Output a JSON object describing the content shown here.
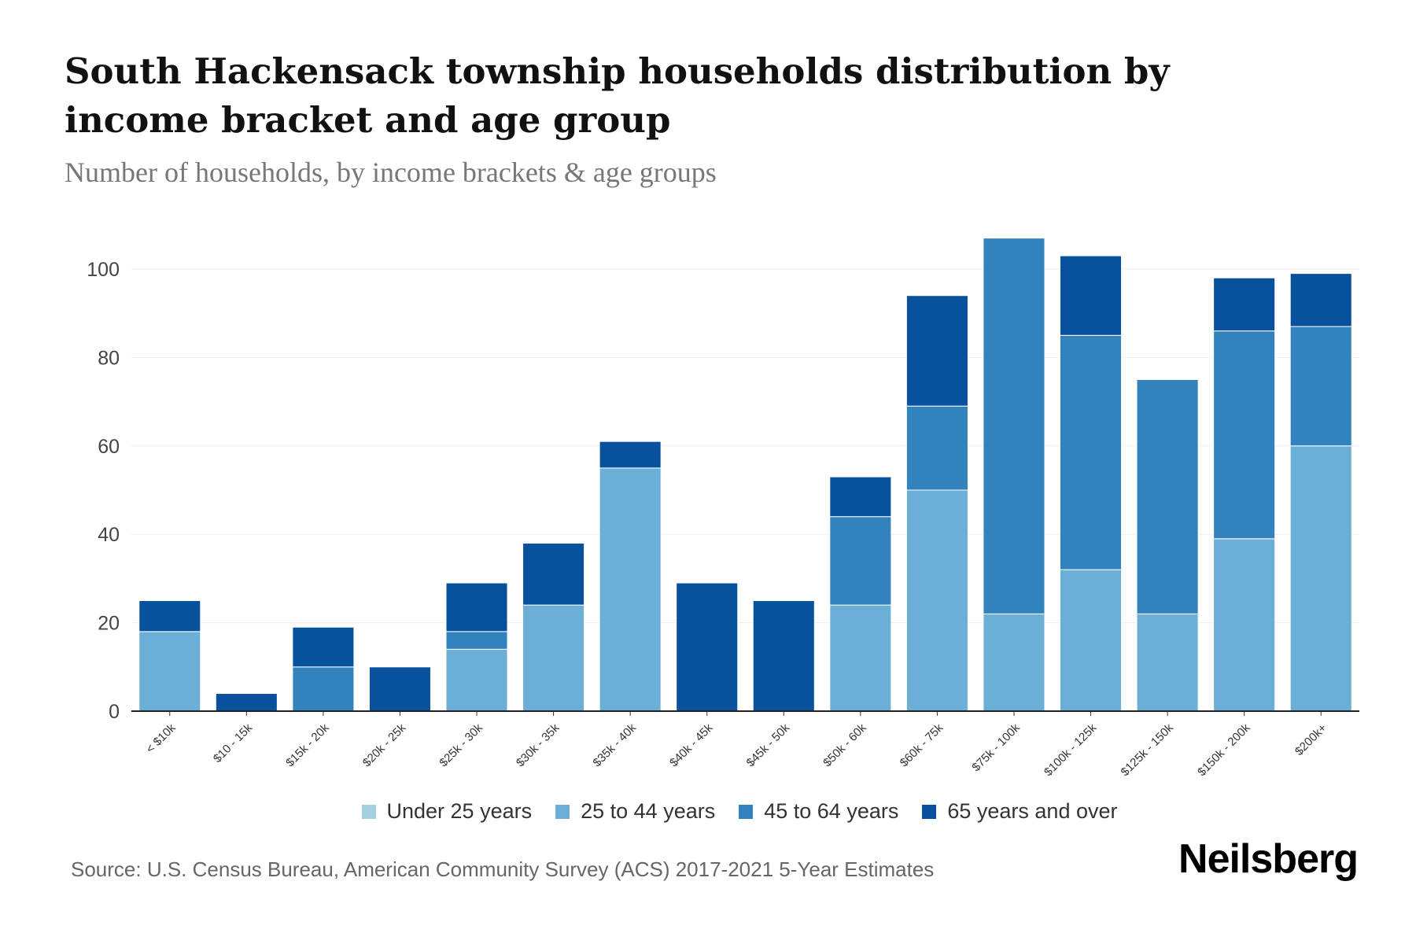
{
  "title": "South Hackensack township households distribution by income bracket and age group",
  "subtitle": "Number of households, by income brackets & age groups",
  "source": "Source: U.S. Census Bureau, American Community Survey (ACS) 2017-2021 5-Year Estimates",
  "logo": "Neilsberg",
  "chart_data": {
    "type": "bar",
    "stacked": true,
    "title": "South Hackensack township households distribution by income bracket and age group",
    "xlabel": "",
    "ylabel": "Number of households",
    "ylim": [
      0,
      110
    ],
    "yticks": [
      0,
      20,
      40,
      60,
      80,
      100
    ],
    "grid": true,
    "legend_position": "bottom",
    "categories": [
      "< $10k",
      "$10 - 15k",
      "$15k - 20k",
      "$20k - 25k",
      "$25k - 30k",
      "$30k - 35k",
      "$35k - 40k",
      "$40k - 45k",
      "$45k - 50k",
      "$50k - 60k",
      "$60k - 75k",
      "$75k - 100k",
      "$100k - 125k",
      "$125k - 150k",
      "$150k - 200k",
      "$200k+"
    ],
    "series": [
      {
        "name": "Under 25 years",
        "color": "#a6cfe3",
        "values": [
          0,
          0,
          0,
          0,
          0,
          0,
          0,
          0,
          0,
          0,
          0,
          0,
          0,
          0,
          0,
          0
        ]
      },
      {
        "name": "25 to 44 years",
        "color": "#6baed6",
        "values": [
          18,
          0,
          0,
          0,
          14,
          24,
          55,
          0,
          0,
          24,
          50,
          22,
          32,
          22,
          39,
          60
        ]
      },
      {
        "name": "45 to 64 years",
        "color": "#3282bd",
        "values": [
          0,
          0,
          10,
          0,
          4,
          0,
          0,
          0,
          0,
          20,
          19,
          85,
          53,
          53,
          47,
          27
        ]
      },
      {
        "name": "65 years and over",
        "color": "#08519c",
        "values": [
          7,
          4,
          9,
          10,
          11,
          14,
          6,
          29,
          25,
          9,
          25,
          0,
          18,
          0,
          12,
          12
        ]
      }
    ]
  }
}
